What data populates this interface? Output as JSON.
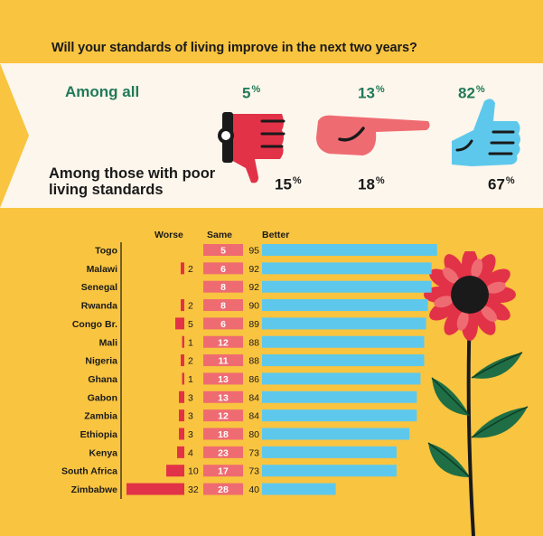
{
  "question": "Will your standards of living improve in the next two years?",
  "summary": {
    "among_all_label": "Among all",
    "among_poor_label": "Among those with poor living standards",
    "worse": {
      "all": "5",
      "poor": "15"
    },
    "same": {
      "all": "13",
      "poor": "18"
    },
    "better": {
      "all": "82",
      "poor": "67"
    },
    "percent_sign": "%"
  },
  "colors": {
    "background": "#f9c440",
    "worse": "#e23248",
    "same": "#ef6b72",
    "better": "#5ec8ec",
    "green_text": "#1f7a59",
    "band": "#fdf6ec"
  },
  "icons": [
    "thumbs-down-icon",
    "pointing-hand-icon",
    "thumbs-up-icon",
    "sunflower-illustration"
  ],
  "chart_data": {
    "type": "bar",
    "orientation": "horizontal",
    "stacked_layout": "diverging",
    "column_headers": [
      "Worse",
      "Same",
      "Better"
    ],
    "categories": [
      "Togo",
      "Malawi",
      "Senegal",
      "Rwanda",
      "Congo Br.",
      "Mali",
      "Nigeria",
      "Ghana",
      "Gabon",
      "Zambia",
      "Ethiopia",
      "Kenya",
      "South Africa",
      "Zimbabwe"
    ],
    "series": [
      {
        "name": "Worse",
        "values": [
          null,
          2,
          null,
          2,
          5,
          1,
          2,
          1,
          3,
          3,
          3,
          4,
          10,
          32
        ]
      },
      {
        "name": "Same",
        "values": [
          5,
          6,
          8,
          8,
          6,
          12,
          11,
          13,
          13,
          12,
          18,
          23,
          17,
          28
        ]
      },
      {
        "name": "Better",
        "values": [
          95,
          92,
          92,
          90,
          89,
          88,
          88,
          86,
          84,
          84,
          80,
          73,
          73,
          40
        ]
      }
    ],
    "units": "%"
  }
}
